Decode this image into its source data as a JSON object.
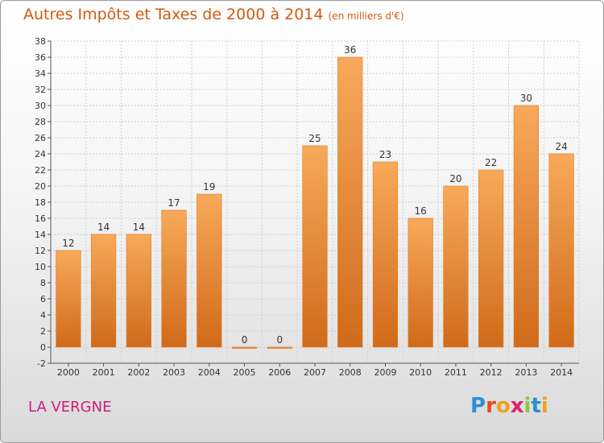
{
  "header": {
    "title": "Autres Impôts et Taxes de 2000 à 2014",
    "subtitle": "(en milliers d'€)"
  },
  "footer": {
    "commune": "LA VERGNE",
    "brand": [
      "P",
      "r",
      "o",
      "x",
      "i",
      "t",
      "i"
    ]
  },
  "colors": {
    "bar_top": "#f8a95a",
    "bar_bottom": "#d06a1a",
    "grid": "#d0d0d0",
    "title": "#d05a10",
    "commune": "#cc1f7a"
  },
  "chart_data": {
    "type": "bar",
    "title": "Autres Impôts et Taxes de 2000 à 2014",
    "xlabel": "",
    "ylabel": "",
    "categories": [
      "2000",
      "2001",
      "2002",
      "2003",
      "2004",
      "2005",
      "2006",
      "2007",
      "2008",
      "2009",
      "2010",
      "2011",
      "2012",
      "2013",
      "2014"
    ],
    "values": [
      12,
      14,
      14,
      17,
      19,
      0,
      0,
      25,
      36,
      23,
      16,
      20,
      22,
      30,
      24
    ],
    "ylim": [
      -2,
      38
    ],
    "yticks": [
      -2,
      0,
      2,
      4,
      6,
      8,
      10,
      12,
      14,
      16,
      18,
      20,
      22,
      24,
      26,
      28,
      30,
      32,
      34,
      36,
      38
    ],
    "grid": true,
    "data_labels": true
  }
}
